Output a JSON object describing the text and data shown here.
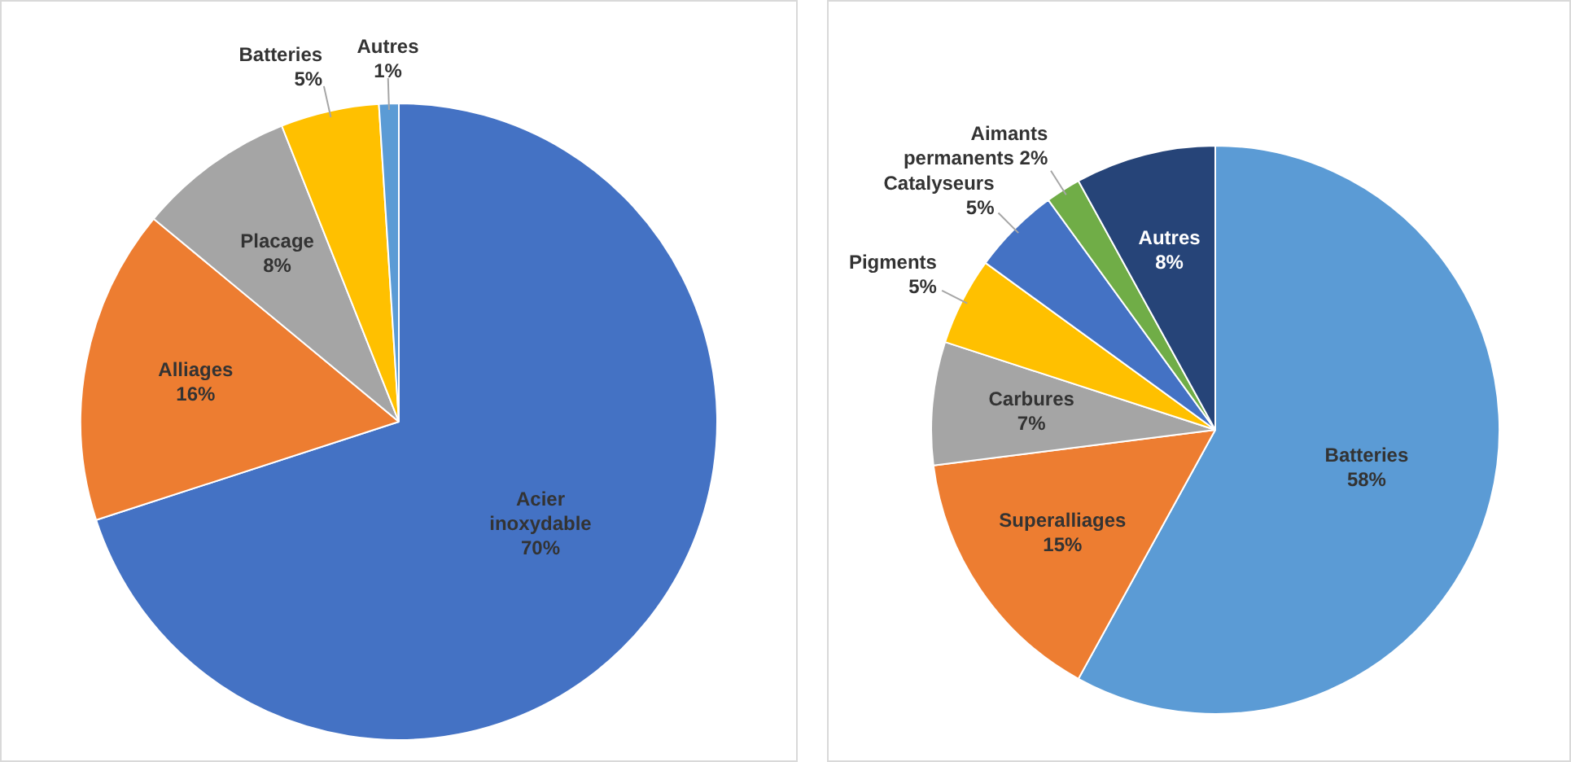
{
  "chart_data": [
    {
      "type": "pie",
      "categories": [
        "Acier inoxydable",
        "Alliages",
        "Placage",
        "Batteries",
        "Autres"
      ],
      "values": [
        70,
        16,
        8,
        5,
        1
      ],
      "colors": [
        "#4472c4",
        "#ed7d31",
        "#a5a5a5",
        "#ffc000",
        "#5b9bd5"
      ],
      "value_labels": [
        "70%",
        "16%",
        "8%",
        "5%",
        "1%"
      ],
      "legend": false
    },
    {
      "type": "pie",
      "categories": [
        "Batteries",
        "Superalliages",
        "Carbures",
        "Pigments",
        "Catalyseurs",
        "Aimants permanents",
        "Autres"
      ],
      "values": [
        58,
        15,
        7,
        5,
        5,
        2,
        8
      ],
      "colors": [
        "#5b9bd5",
        "#ed7d31",
        "#a5a5a5",
        "#ffc000",
        "#4472c4",
        "#70ad47",
        "#264478"
      ],
      "value_labels": [
        "58%",
        "15%",
        "7%",
        "5%",
        "5%",
        "2%",
        "8%"
      ],
      "legend": false
    }
  ]
}
